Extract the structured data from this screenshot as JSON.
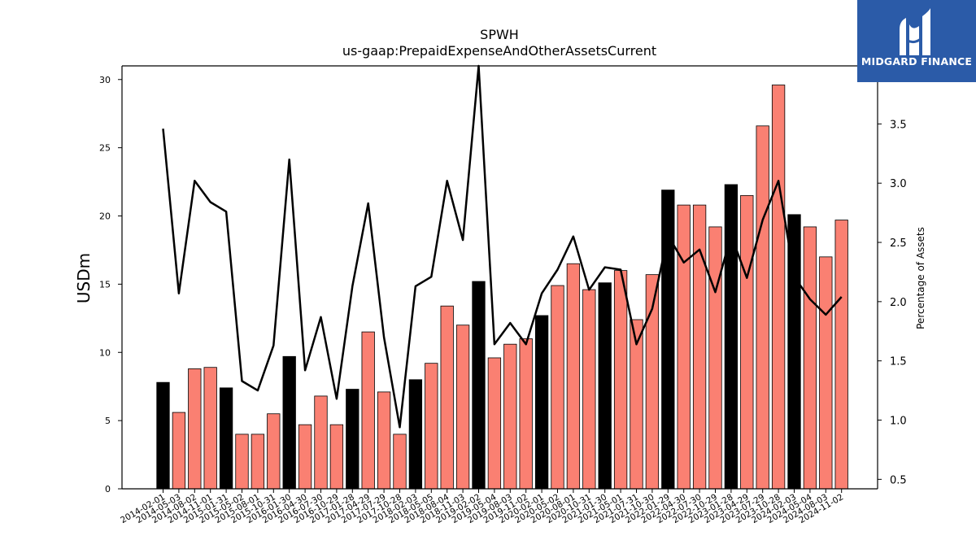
{
  "chart_data": {
    "type": "bar",
    "title": "SPWH",
    "subtitle": "us-gaap:PrepaidExpenseAndOtherAssetsCurrent",
    "ylabel": "USDm",
    "y2label": "Percentage of Assets",
    "ylim": [
      0,
      31
    ],
    "y2lim": [
      0.42,
      3.99
    ],
    "yticks": [
      0,
      5,
      10,
      15,
      20,
      25,
      30
    ],
    "y2ticks": [
      0.5,
      1.0,
      1.5,
      2.0,
      2.5,
      3.0,
      3.5
    ],
    "y2ticklabels": [
      "0.5",
      "1.0",
      "1.5",
      "2.0",
      "2.5",
      "3.0",
      "3.5"
    ],
    "categories": [
      "2014-02-01",
      "2014-05-03",
      "2014-08-02",
      "2014-11-01",
      "2015-01-31",
      "2015-05-02",
      "2015-08-01",
      "2015-10-31",
      "2016-01-30",
      "2016-04-30",
      "2016-07-30",
      "2016-10-29",
      "2017-01-28",
      "2017-04-29",
      "2017-07-29",
      "2017-10-28",
      "2018-02-03",
      "2018-05-05",
      "2018-08-04",
      "2018-11-03",
      "2019-02-02",
      "2019-05-04",
      "2019-08-03",
      "2019-11-02",
      "2020-02-01",
      "2020-05-02",
      "2020-08-01",
      "2020-10-31",
      "2021-01-30",
      "2021-05-01",
      "2021-07-31",
      "2021-10-30",
      "2022-01-29",
      "2022-04-30",
      "2022-07-30",
      "2022-10-29",
      "2023-01-28",
      "2023-04-29",
      "2023-07-29",
      "2023-10-28",
      "2024-02-03",
      "2024-05-04",
      "2024-08-03",
      "2024-11-02"
    ],
    "series": [
      {
        "values": [
          7.8,
          5.6,
          8.8,
          8.9,
          7.4,
          4.0,
          4.0,
          5.5,
          9.7,
          4.7,
          6.8,
          4.7,
          7.3,
          11.5,
          7.1,
          4.0,
          8.0,
          9.2,
          13.4,
          12.0,
          15.2,
          9.6,
          10.6,
          11.0,
          12.7,
          14.9,
          16.5,
          14.6,
          15.1,
          16.0,
          12.4,
          15.7,
          21.9,
          20.8,
          20.8,
          19.2,
          22.3,
          21.5,
          26.6,
          29.6,
          20.1,
          19.2,
          17.0,
          19.7
        ],
        "highlight": [
          0,
          4,
          8,
          12,
          16,
          20,
          24,
          28,
          32,
          36,
          40
        ],
        "color": "#fa8072",
        "highlight_color": "#000000"
      },
      {
        "axis": "right",
        "type": "line",
        "color": "#000000",
        "values": [
          3.46,
          2.07,
          3.02,
          2.84,
          2.76,
          1.33,
          1.25,
          1.63,
          3.2,
          1.42,
          1.87,
          1.18,
          2.13,
          2.83,
          1.7,
          0.94,
          2.13,
          2.21,
          3.02,
          2.52,
          3.99,
          1.64,
          1.82,
          1.64,
          2.07,
          2.27,
          2.55,
          2.1,
          2.29,
          2.27,
          1.64,
          1.94,
          2.56,
          2.33,
          2.44,
          2.08,
          2.56,
          2.2,
          2.69,
          3.02,
          2.21,
          2.02,
          1.89,
          2.04
        ]
      }
    ]
  },
  "logo": {
    "text": "MIDGARD FINANCE",
    "icon": "midgard-logo-icon",
    "background": "#2b5ba8"
  }
}
